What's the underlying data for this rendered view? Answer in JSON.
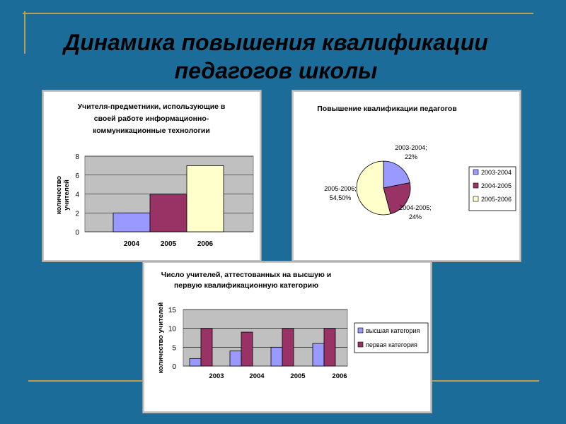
{
  "slide": {
    "title_line1": "Динамика повышения квалификации",
    "title_line2": "педагогов школы"
  },
  "chart_data": [
    {
      "type": "bar",
      "title": [
        "Учителя-предметники, использующие в",
        "своей работе информационно-",
        "коммуникационные технологии"
      ],
      "ylabel": [
        "количество",
        "учителей"
      ],
      "categories": [
        "2004",
        "2005",
        "2006"
      ],
      "values": [
        2,
        4,
        7
      ],
      "colors": [
        "#9999ff",
        "#993366",
        "#ffffcc"
      ],
      "ylim": [
        0,
        8
      ],
      "yticks": [
        0,
        2,
        4,
        6,
        8
      ],
      "grid": true,
      "plot_bg": "#c0c0c0"
    },
    {
      "type": "pie",
      "title": "Повышение квалификации педагогов",
      "slices": [
        {
          "name": "2003-2004",
          "value": 22,
          "label": [
            "2003-2004;",
            "22%"
          ],
          "color": "#9999ff"
        },
        {
          "name": "2004-2005",
          "value": 24,
          "label": [
            "2004-2005;",
            "24%"
          ],
          "color": "#993366"
        },
        {
          "name": "2005-2006",
          "value": 54.5,
          "label": [
            "2005-2006;",
            "54,50%"
          ],
          "color": "#ffffcc"
        }
      ],
      "legend": [
        "2003-2004",
        "2004-2005",
        "2005-2006"
      ],
      "legend_position": "right"
    },
    {
      "type": "bar",
      "title": [
        "Число учителей, аттестованных на высшую и",
        "первую квалификационную категорию"
      ],
      "ylabel": "количество учителей",
      "categories": [
        "2003",
        "2004",
        "2005",
        "2006"
      ],
      "series": [
        {
          "name": "высшая категория",
          "values": [
            2,
            4,
            5,
            6
          ],
          "color": "#9999ff"
        },
        {
          "name": "первая категория",
          "values": [
            10,
            9,
            10,
            10
          ],
          "color": "#993366"
        }
      ],
      "ylim": [
        0,
        15
      ],
      "yticks": [
        0,
        5,
        10,
        15
      ],
      "grid": true,
      "plot_bg": "#c0c0c0",
      "legend_position": "right"
    }
  ]
}
